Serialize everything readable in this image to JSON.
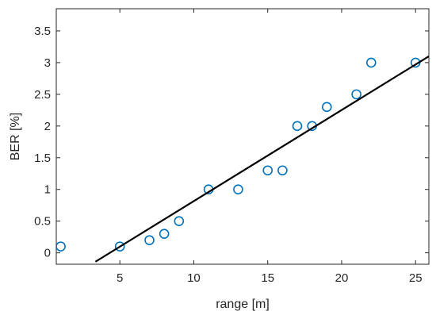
{
  "chart_data": {
    "type": "scatter",
    "title": "",
    "xlabel": "range [m]",
    "ylabel": "BER [%]",
    "xlim": [
      0.7,
      25.9
    ],
    "ylim": [
      -0.18,
      3.85
    ],
    "xticks": [
      5,
      10,
      15,
      20,
      25
    ],
    "xtick_labels": [
      "5",
      "10",
      "15",
      "20",
      "25"
    ],
    "yticks": [
      0,
      0.5,
      1,
      1.5,
      2,
      2.5,
      3,
      3.5
    ],
    "ytick_labels": [
      "0",
      "0.5",
      "1",
      "1.5",
      "2",
      "2.5",
      "3",
      "3.5"
    ],
    "grid": false,
    "legend": "none",
    "series": [
      {
        "type": "scatter",
        "marker": "circle-open",
        "color": "#0072BD",
        "x": [
          1,
          5,
          7,
          8,
          9,
          11,
          13,
          15,
          16,
          17,
          18,
          19,
          21,
          22,
          25
        ],
        "y": [
          0.1,
          0.1,
          0.2,
          0.3,
          0.5,
          1.0,
          1.0,
          1.3,
          1.3,
          2.0,
          2.0,
          2.3,
          2.5,
          3.0,
          3.0
        ]
      },
      {
        "type": "line",
        "color": "#000000",
        "x": [
          3.35,
          25.9
        ],
        "y": [
          -0.14,
          3.1
        ]
      }
    ]
  }
}
